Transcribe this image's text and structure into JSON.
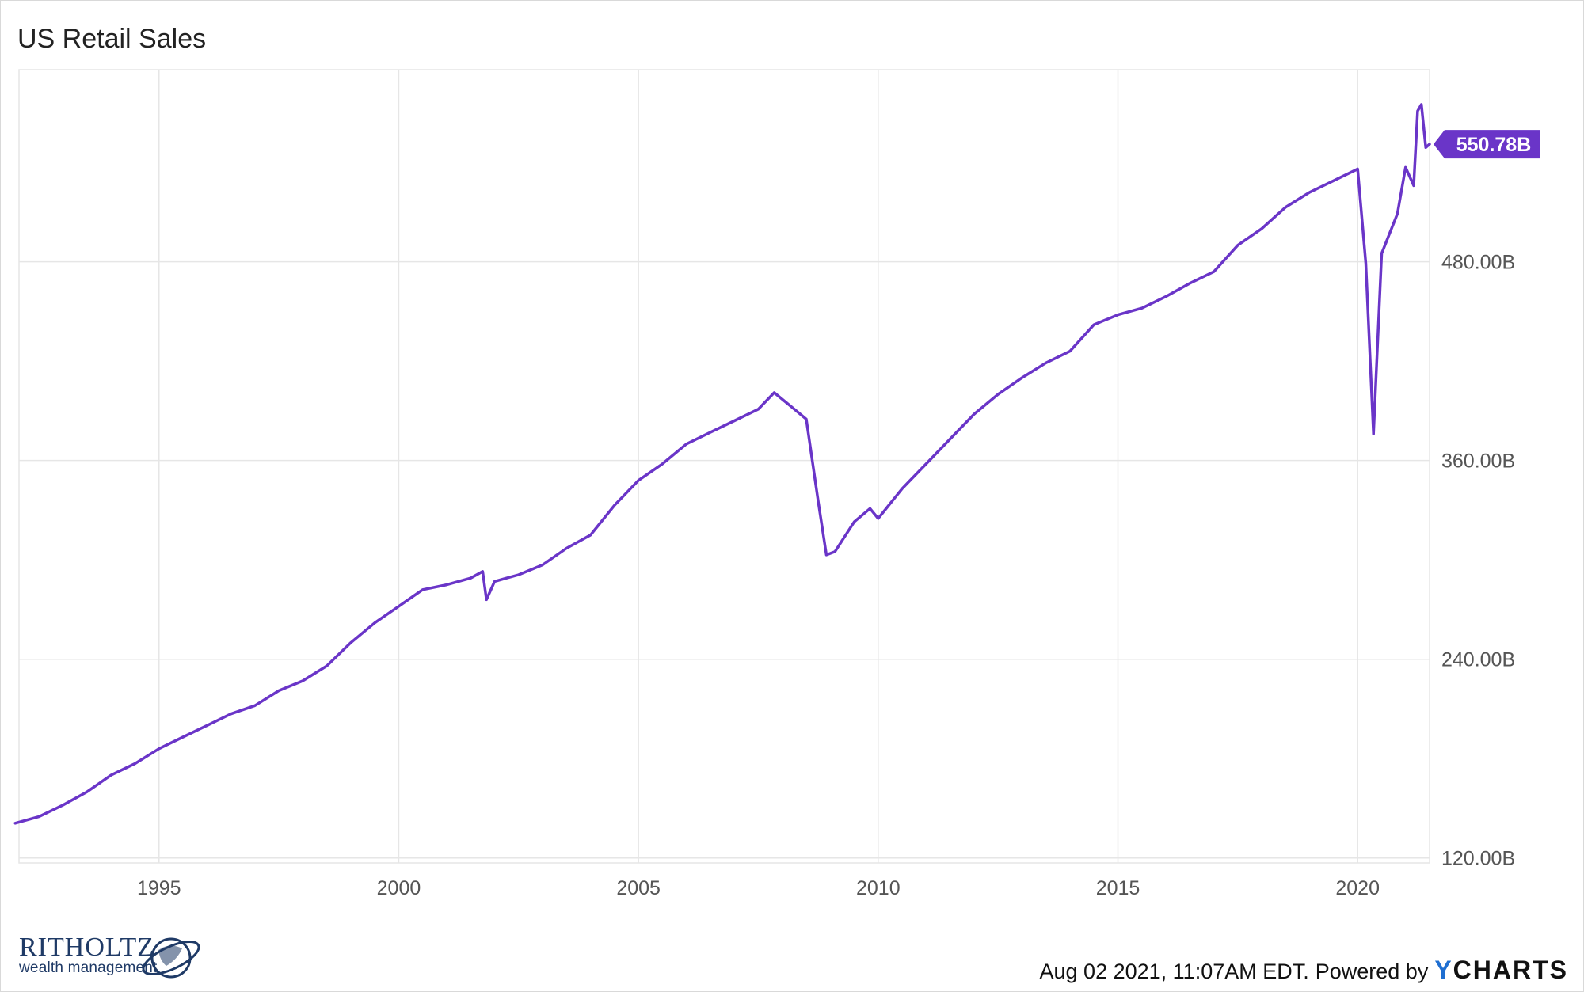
{
  "title": "US Retail Sales",
  "footer": {
    "timestamp": "Aug 02 2021, 11:07AM EDT.",
    "powered_by": "Powered by",
    "brand_y": "Y",
    "brand_rest": "CHARTS"
  },
  "logo": {
    "name": "RITHOLTZ",
    "subtitle": "wealth management"
  },
  "colors": {
    "line": "#6a35c8",
    "grid": "#e6e6e6",
    "axis_text": "#555555"
  },
  "chart_data": {
    "type": "line",
    "title": "US Retail Sales",
    "x_range": [
      1992.08,
      2021.5
    ],
    "y_range": [
      117,
      596
    ],
    "x_ticks": [
      1995,
      2000,
      2005,
      2010,
      2015,
      2020
    ],
    "x_tick_labels": [
      "1995",
      "2000",
      "2005",
      "2010",
      "2015",
      "2020"
    ],
    "y_ticks": [
      120,
      240,
      360,
      480
    ],
    "y_tick_labels": [
      "120.00B",
      "240.00B",
      "360.00B",
      "480.00B"
    ],
    "grid": true,
    "last_value_label": "550.78B",
    "series": [
      {
        "x": [
          1992.0,
          1992.5,
          1993.0,
          1993.5,
          1994.0,
          1994.5,
          1995.0,
          1995.5,
          1996.0,
          1996.5,
          1997.0,
          1997.5,
          1998.0,
          1998.5,
          1999.0,
          1999.5,
          2000.0,
          2000.5,
          2001.0,
          2001.5,
          2001.75,
          2001.83,
          2002.0,
          2002.5,
          2003.0,
          2003.5,
          2004.0,
          2004.5,
          2005.0,
          2005.5,
          2006.0,
          2006.5,
          2007.0,
          2007.5,
          2007.83,
          2008.25,
          2008.5,
          2008.75,
          2008.92,
          2009.1,
          2009.5,
          2009.83,
          2010.0,
          2010.5,
          2011.0,
          2011.5,
          2012.0,
          2012.5,
          2013.0,
          2013.5,
          2014.0,
          2014.5,
          2015.0,
          2015.5,
          2016.0,
          2016.5,
          2017.0,
          2017.5,
          2018.0,
          2018.5,
          2019.0,
          2019.5,
          2020.0,
          2020.17,
          2020.33,
          2020.5,
          2020.83,
          2021.0,
          2021.17,
          2021.25,
          2021.33,
          2021.42,
          2021.5
        ],
        "y": [
          141,
          145,
          152,
          160,
          170,
          177,
          186,
          193,
          200,
          207,
          212,
          221,
          227,
          236,
          250,
          262,
          272,
          282,
          285,
          289,
          293,
          276,
          287,
          291,
          297,
          307,
          315,
          333,
          348,
          358,
          370,
          377,
          384,
          391,
          401,
          391,
          385,
          335,
          303,
          305,
          323,
          331,
          325,
          343,
          358,
          373,
          388,
          400,
          410,
          419,
          426,
          442,
          448,
          452,
          459,
          467,
          474,
          490,
          500,
          513,
          522,
          529,
          536,
          479,
          376,
          485,
          509,
          537,
          526,
          571,
          575,
          549,
          551
        ]
      }
    ]
  }
}
